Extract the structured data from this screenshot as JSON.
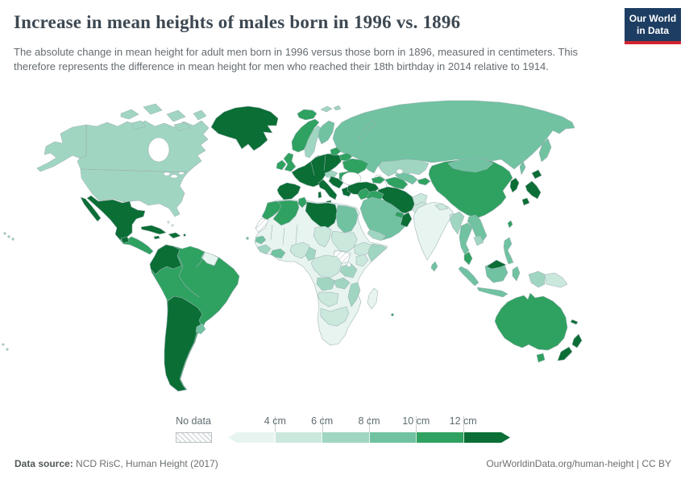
{
  "header": {
    "title": "Increase in mean heights of males born in 1996 vs. 1896",
    "subtitle": "The absolute change in mean height for adult men born in 1996 versus those born in 1896, measured in centimeters. This therefore represents the difference in mean height for men who reached their 18th birthday in 2014 relative to 1914.",
    "logo": {
      "line1": "Our World",
      "line2": "in Data",
      "bg": "#1d3d63",
      "accent": "#d1242f"
    }
  },
  "legend": {
    "no_data_label": "No data",
    "ticks": [
      "4 cm",
      "6 cm",
      "8 cm",
      "10 cm",
      "12 cm"
    ]
  },
  "footer": {
    "source_label": "Data source:",
    "source_text": " NCD RisC, Human Height (2017)",
    "right": "OurWorldinData.org/human-height | CC BY"
  },
  "chart_data": {
    "type": "choropleth-map",
    "title": "Increase in mean heights of males born in 1996 vs. 1896",
    "unit": "cm",
    "projection": "world",
    "legend_position": "bottom",
    "legend_bins": [
      {
        "id": "nodata",
        "label": "No data",
        "color": "hatch"
      },
      {
        "id": "lt4",
        "label": "< 4 cm",
        "color": "#e7f4ef"
      },
      {
        "id": "b46",
        "label": "4–6 cm",
        "color": "#cbe8dd"
      },
      {
        "id": "b68",
        "label": "6–8 cm",
        "color": "#a0d6c1"
      },
      {
        "id": "b810",
        "label": "8–10 cm",
        "color": "#70c2a1"
      },
      {
        "id": "b1012",
        "label": "10–12 cm",
        "color": "#2fa160"
      },
      {
        "id": "gt12",
        "label": "> 12 cm",
        "color": "#0a6e35"
      }
    ],
    "regions": {
      "canada": "b68",
      "united_states": "b68",
      "greenland": "gt12",
      "iceland": "b1012",
      "mexico": "gt12",
      "guatemala": "gt12",
      "central_america": "b1012",
      "cuba": "gt12",
      "hispaniola": "gt12",
      "jamaica": "gt12",
      "puerto_rico": "gt12",
      "bahamas": "lt4",
      "hawaii": "b68",
      "french_polynesia": "b68",
      "cape_verde": "b810",
      "south_america_core": "b1012",
      "colombia_ecuador": "gt12",
      "guyanas": "lt4",
      "chile_argentina": "gt12",
      "uruguay": "b810",
      "norway": "b1012",
      "sweden": "b68",
      "finland": "b810",
      "denmark": "gt12",
      "united_kingdom": "b1012",
      "ireland": "b1012",
      "western_europe": "gt12",
      "iberia": "gt12",
      "italy": "gt12",
      "sicily": "gt12",
      "sardinia": "gt12",
      "austria_hungary": "b68",
      "baltic_states": "b1012",
      "belarus": "b1012",
      "ukraine": "b1012",
      "romania_bulgaria": "b1012",
      "western_balkans": "gt12",
      "greece": "gt12",
      "turkey": "gt12",
      "caucasus": "b1012",
      "russia": "b810",
      "kazakhstan": "b68",
      "turkmenistan": "b1012",
      "uzbekistan": "b810",
      "kyrgyzstan_tajikistan": "b1012",
      "iran": "gt12",
      "afghanistan": "b46",
      "pakistan": "b46",
      "iraq": "b1012",
      "levant": "b1012",
      "saudi_arabia": "b810",
      "oman": "gt12",
      "uae_qatar": "b1012",
      "yemen": "b68",
      "svalbard": "b68",
      "novaya_zemlya": "b810",
      "africa_base": "lt4",
      "morocco": "b1012",
      "western_sahara": "nodata",
      "algeria": "b1012",
      "tunisia": "b1012",
      "libya": "gt12",
      "egypt": "b810",
      "chad": "b46",
      "sudan": "b46",
      "south_sudan": "nodata",
      "senegal": "b810",
      "guinea": "b68",
      "ghana_ivory_coast": "b810",
      "nigeria": "b46",
      "cameroon": "b68",
      "ethiopia": "b46",
      "somalia": "b68",
      "kenya": "b46",
      "dr_congo": "b46",
      "tanzania": "b68",
      "angola": "b68",
      "zambia": "b68",
      "mozambique": "b68",
      "namibia_botswana": "b46",
      "south_africa": "b46",
      "madagascar": "lt4",
      "mauritius": "b1012",
      "india": "lt4",
      "nepal": "b46",
      "bangladesh": "b46",
      "sri_lanka": "b810",
      "china": "b1012",
      "mongolia": "b810",
      "korea": "gt12",
      "japan": "gt12",
      "taiwan": "b1012",
      "myanmar": "b68",
      "thailand": "b810",
      "vietnam_laos": "b810",
      "cambodia": "b68",
      "malay_peninsula": "b1012",
      "sumatra": "b810",
      "java": "b810",
      "borneo_indonesia": "b810",
      "borneo_malaysia": "gt12",
      "sulawesi": "b810",
      "philippines": "b810",
      "west_papua": "b68",
      "papua_new_guinea": "b46",
      "australia": "b1012",
      "tasmania": "b1012",
      "new_zealand": "gt12",
      "new_caledonia": "gt12"
    }
  }
}
